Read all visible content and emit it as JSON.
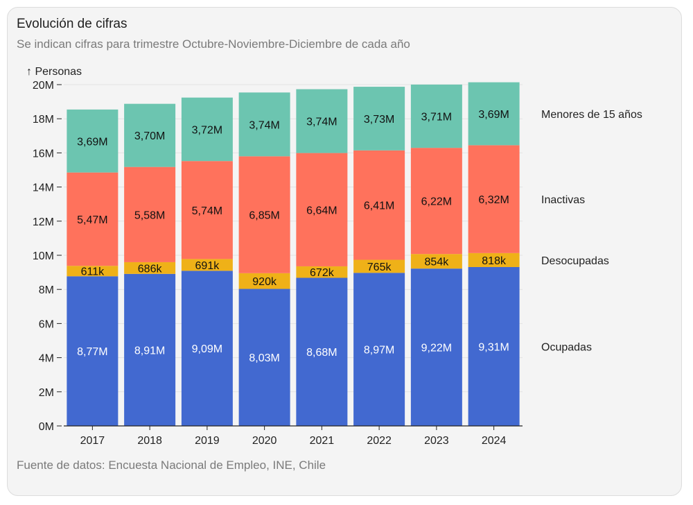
{
  "header": {
    "title": "Evolución de cifras",
    "subtitle": "Se indican cifras para trimestre Octubre-Noviembre-Diciembre de cada año"
  },
  "footer": {
    "source": "Fuente de datos: Encuesta Nacional de Empleo, INE, Chile"
  },
  "chart_data": {
    "type": "bar",
    "stacked": true,
    "title": "Evolución de cifras",
    "ylabel": "↑ Personas",
    "xlabel": "",
    "ylim": [
      0,
      20000000
    ],
    "yticks": [
      {
        "value": 0,
        "label": "0M"
      },
      {
        "value": 2000000,
        "label": "2M"
      },
      {
        "value": 4000000,
        "label": "4M"
      },
      {
        "value": 6000000,
        "label": "6M"
      },
      {
        "value": 8000000,
        "label": "8M"
      },
      {
        "value": 10000000,
        "label": "10M"
      },
      {
        "value": 12000000,
        "label": "12M"
      },
      {
        "value": 14000000,
        "label": "14M"
      },
      {
        "value": 16000000,
        "label": "16M"
      },
      {
        "value": 18000000,
        "label": "18M"
      },
      {
        "value": 20000000,
        "label": "20M"
      }
    ],
    "categories": [
      "2017",
      "2018",
      "2019",
      "2020",
      "2021",
      "2022",
      "2023",
      "2024"
    ],
    "series": [
      {
        "name": "Ocupadas",
        "color": "#4269d0",
        "text_color": "#ffffff",
        "values": [
          8770000,
          8910000,
          9090000,
          8030000,
          8680000,
          8970000,
          9220000,
          9310000
        ],
        "labels": [
          "8,77M",
          "8,91M",
          "9,09M",
          "8,03M",
          "8,68M",
          "8,97M",
          "9,22M",
          "9,31M"
        ]
      },
      {
        "name": "Desocupadas",
        "color": "#efb118",
        "text_color": "#111111",
        "values": [
          611000,
          686000,
          691000,
          920000,
          672000,
          765000,
          854000,
          818000
        ],
        "labels": [
          "611k",
          "686k",
          "691k",
          "920k",
          "672k",
          "765k",
          "854k",
          "818k"
        ]
      },
      {
        "name": "Inactivas",
        "color": "#ff725c",
        "text_color": "#111111",
        "values": [
          5470000,
          5580000,
          5740000,
          6850000,
          6640000,
          6410000,
          6220000,
          6320000
        ],
        "labels": [
          "5,47M",
          "5,58M",
          "5,74M",
          "6,85M",
          "6,64M",
          "6,41M",
          "6,22M",
          "6,32M"
        ]
      },
      {
        "name": "Menores de 15 años",
        "color": "#6cc5b0",
        "text_color": "#111111",
        "values": [
          3690000,
          3700000,
          3720000,
          3740000,
          3740000,
          3730000,
          3710000,
          3690000
        ],
        "labels": [
          "3,69M",
          "3,70M",
          "3,72M",
          "3,74M",
          "3,74M",
          "3,73M",
          "3,71M",
          "3,69M"
        ]
      }
    ]
  }
}
